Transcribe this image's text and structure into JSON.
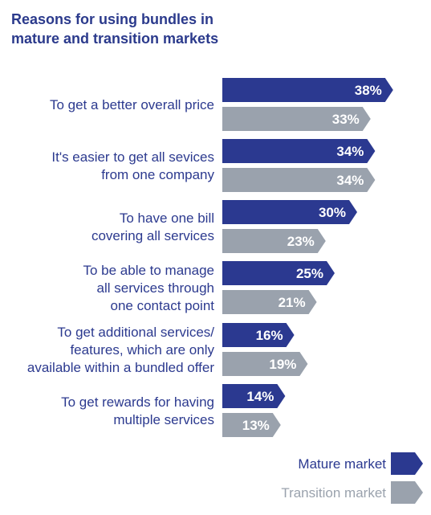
{
  "chart_data": {
    "type": "bar",
    "orientation": "horizontal",
    "title": "Reasons for using bundles in mature and transition markets",
    "title_lines": [
      "Reasons for using bundles in",
      "mature and transition markets"
    ],
    "categories": [
      [
        "To get a better overall price"
      ],
      [
        "It's easier to get all sevices",
        "from one company"
      ],
      [
        "To have one bill",
        "covering all services"
      ],
      [
        "To be able to manage",
        "all services through",
        "one contact point"
      ],
      [
        "To get additional services/",
        "features, which are only",
        "available within a bundled offer"
      ],
      [
        "To get rewards for having",
        "multiple services"
      ]
    ],
    "series": [
      {
        "name": "Mature market",
        "color": "#2b3990",
        "values": [
          38,
          34,
          30,
          25,
          16,
          14
        ],
        "labels": [
          "38%",
          "34%",
          "30%",
          "25%",
          "16%",
          "14%"
        ]
      },
      {
        "name": "Transition market",
        "color": "#9aa2ad",
        "values": [
          33,
          34,
          23,
          21,
          19,
          13
        ],
        "labels": [
          "33%",
          "34%",
          "23%",
          "21%",
          "19%",
          "13%"
        ]
      }
    ],
    "legend_position": "bottom-right",
    "grid": false
  }
}
